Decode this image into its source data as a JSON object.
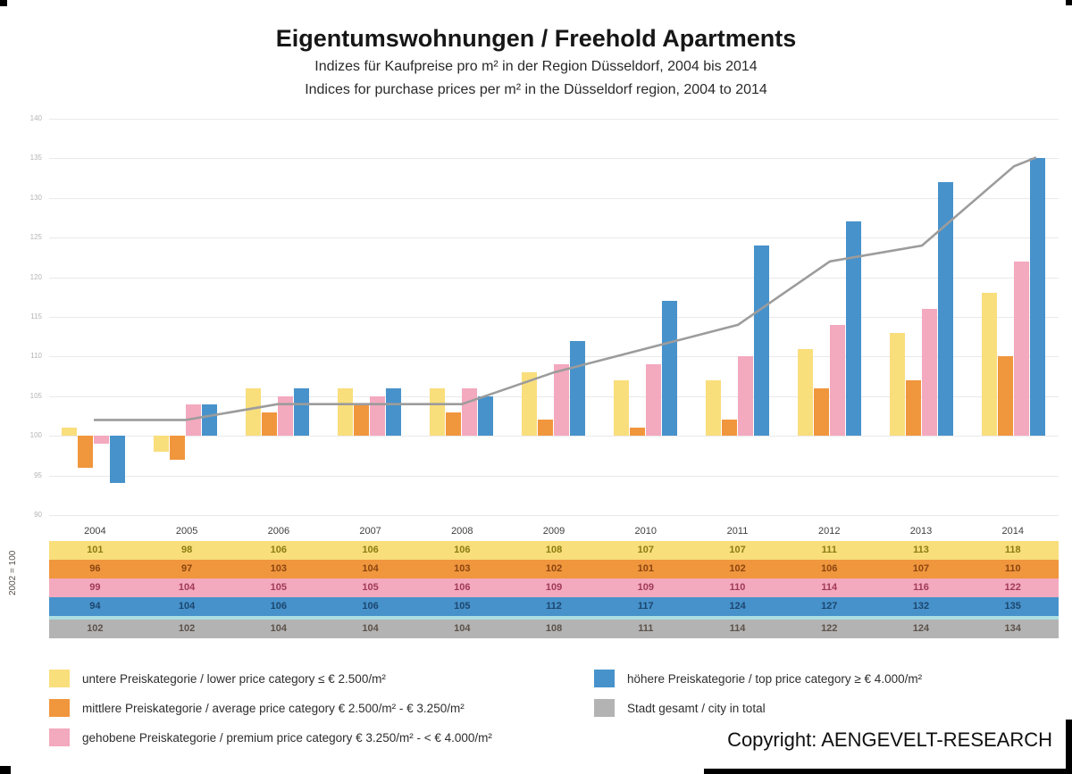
{
  "header": {
    "title": "Eigentumswohnungen / Freehold Apartments",
    "subtitle_de": "Indizes für Kaufpreise pro m² in der Region Düsseldorf, 2004 bis 2014",
    "subtitle_en": "Indices for purchase prices per m² in the Düsseldorf region, 2004 to 2014"
  },
  "chart_data": {
    "type": "bar",
    "title": "Eigentumswohnungen / Freehold Apartments",
    "xlabel": "",
    "ylabel": "2002 = 100",
    "ylim": [
      90,
      140
    ],
    "ytick_step": 5,
    "baseline": 100,
    "grid": true,
    "legend_position": "bottom",
    "categories": [
      "2004",
      "2005",
      "2006",
      "2007",
      "2008",
      "2009",
      "2010",
      "2011",
      "2012",
      "2013",
      "2014"
    ],
    "series": [
      {
        "name": "untere Preiskategorie / lower price category ≤ € 2.500/m²",
        "type": "bar",
        "color": "#f9de7c",
        "value_color": "#8a7c10",
        "values": [
          101,
          98,
          106,
          106,
          106,
          108,
          107,
          107,
          111,
          113,
          118
        ]
      },
      {
        "name": "mittlere Preiskategorie / average price category  € 2.500/m² - € 3.250/m²",
        "type": "bar",
        "color": "#f0963d",
        "value_color": "#8c4510",
        "values": [
          96,
          97,
          103,
          104,
          103,
          102,
          101,
          102,
          106,
          107,
          110
        ]
      },
      {
        "name": "gehobene Preiskategorie / premium price category € 3.250/m² - < € 4.000/m²",
        "type": "bar",
        "color": "#f3a9be",
        "value_color": "#a03a58",
        "values": [
          99,
          104,
          105,
          105,
          106,
          109,
          109,
          110,
          114,
          116,
          122
        ]
      },
      {
        "name": "höhere Preiskategorie / top price category ≥ € 4.000/m²",
        "type": "bar",
        "color": "#4792cb",
        "value_color": "#1c466e",
        "values": [
          94,
          104,
          106,
          106,
          105,
          112,
          117,
          124,
          127,
          132,
          135
        ]
      },
      {
        "name": "Stadt gesamt / city in total",
        "type": "line",
        "color": "#9c9c9c",
        "value_color": "#5c5149",
        "row_color": "#b3b3b3",
        "values": [
          102,
          102,
          104,
          104,
          104,
          108,
          111,
          114,
          122,
          124,
          134
        ]
      }
    ],
    "axis_note": "2002 = 100"
  },
  "footer": {
    "copyright": "Copyright: AENGEVELT-RESEARCH"
  }
}
